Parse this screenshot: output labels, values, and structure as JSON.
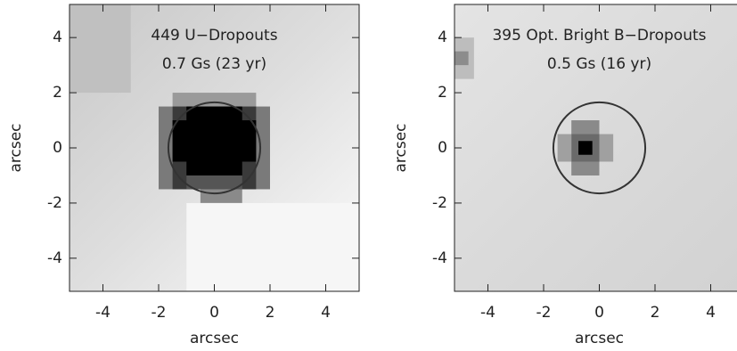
{
  "chart_data": [
    {
      "type": "image",
      "annotations": [
        "449 U−Dropouts",
        "0.7 Gs (23 yr)"
      ],
      "xlabel": "arcsec",
      "ylabel": "arcsec",
      "xlim": [
        -5.2,
        5.2
      ],
      "ylim": [
        -5.2,
        5.2
      ],
      "xticks": [
        -4,
        -2,
        0,
        2,
        4
      ],
      "yticks": [
        -4,
        -2,
        0,
        2,
        4
      ],
      "circle": {
        "x": 0,
        "y": 0,
        "r": 1.65
      }
    },
    {
      "type": "image",
      "annotations": [
        "395 Opt. Bright B−Dropouts",
        "0.5 Gs (16 yr)"
      ],
      "xlabel": "arcsec",
      "ylabel": "arcsec",
      "xlim": [
        -5.2,
        5.2
      ],
      "ylim": [
        -5.2,
        5.2
      ],
      "xticks": [
        -4,
        -2,
        0,
        2,
        4
      ],
      "yticks": [
        -4,
        -2,
        0,
        2,
        4
      ],
      "circle": {
        "x": 0,
        "y": 0,
        "r": 1.65
      }
    }
  ]
}
